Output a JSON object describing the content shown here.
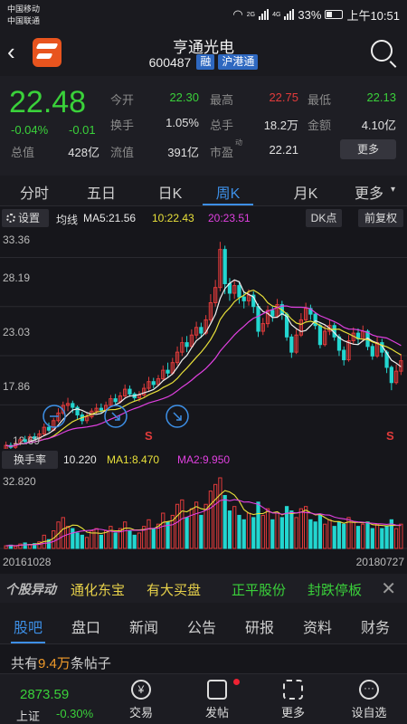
{
  "status": {
    "carrier1": "中国移动",
    "carrier2": "中国联通",
    "net1": "2G",
    "net2": "4G",
    "battery": "33%",
    "time": "上午10:51"
  },
  "header": {
    "name": "亨通光电",
    "code": "600487",
    "tag1": "融",
    "tag2": "沪港通"
  },
  "quote": {
    "price": "22.48",
    "change_pct": "-0.04%",
    "change_abs": "-0.01",
    "rows": [
      [
        {
          "l": "今开",
          "v": "22.30",
          "c": "#3ad13a"
        },
        {
          "l": "最高",
          "v": "22.75",
          "c": "#e23b3b"
        },
        {
          "l": "最低",
          "v": "22.13",
          "c": "#3ad13a"
        }
      ],
      [
        {
          "l": "换手",
          "v": "1.05%",
          "c": "#e0e0e0"
        },
        {
          "l": "总手",
          "v": "18.2万",
          "c": "#e0e0e0"
        },
        {
          "l": "金额",
          "v": "4.10亿",
          "c": "#e0e0e0"
        }
      ],
      [
        {
          "l": "流值",
          "v": "391亿",
          "c": "#e0e0e0"
        },
        {
          "l": "市盈",
          "v": "22.21",
          "c": "#e0e0e0"
        }
      ]
    ],
    "total_label": "总值",
    "total_value": "428亿",
    "pe_sup": "动",
    "more_label": "更多"
  },
  "period_tabs": [
    "分时",
    "五日",
    "日K",
    "周K",
    "月K",
    "更多"
  ],
  "chart_toolbar": {
    "settings": "设置",
    "ma_title": "均线",
    "ma5": "MA5:21.56",
    "ma10": "10:22.43",
    "ma20": "20:23.51",
    "dk": "DK点",
    "fq": "前复权"
  },
  "chart_data": {
    "type": "candlestick",
    "y_ticks": [
      "33.36",
      "28.19",
      "23.03",
      "17.86"
    ],
    "ylim": [
      13.8,
      35.5
    ],
    "min_label": "12.69",
    "candles": [
      [
        13.2,
        13.6,
        13.0,
        14.0
      ],
      [
        13.6,
        13.4,
        13.1,
        13.9
      ],
      [
        13.4,
        13.8,
        13.2,
        14.1
      ],
      [
        13.8,
        14.2,
        13.6,
        14.5
      ],
      [
        14.2,
        14.0,
        13.8,
        14.6
      ],
      [
        14.0,
        14.5,
        13.9,
        14.8
      ],
      [
        14.5,
        14.3,
        14.1,
        14.9
      ],
      [
        14.3,
        14.8,
        14.2,
        15.2
      ],
      [
        14.8,
        15.5,
        14.6,
        15.9
      ],
      [
        15.5,
        15.2,
        15.0,
        16.0
      ],
      [
        15.2,
        16.2,
        15.1,
        16.5
      ],
      [
        16.2,
        17.0,
        16.0,
        17.5
      ],
      [
        17.0,
        17.8,
        16.8,
        18.2
      ],
      [
        17.8,
        18.0,
        17.2,
        18.6
      ],
      [
        18.0,
        17.6,
        17.0,
        18.3
      ],
      [
        17.6,
        16.8,
        16.3,
        17.8
      ],
      [
        16.8,
        16.2,
        15.8,
        17.1
      ],
      [
        16.2,
        16.6,
        15.9,
        17.0
      ],
      [
        16.6,
        17.2,
        16.4,
        17.5
      ],
      [
        17.2,
        17.5,
        16.9,
        18.0
      ],
      [
        17.5,
        17.3,
        17.0,
        18.0
      ],
      [
        17.3,
        17.8,
        17.1,
        18.2
      ],
      [
        17.8,
        18.5,
        17.6,
        18.9
      ],
      [
        18.5,
        18.2,
        17.9,
        19.0
      ],
      [
        18.2,
        18.8,
        18.0,
        19.2
      ],
      [
        18.8,
        19.5,
        18.6,
        20.0
      ],
      [
        19.5,
        19.0,
        18.7,
        19.9
      ],
      [
        19.0,
        18.6,
        18.3,
        19.2
      ],
      [
        18.6,
        18.9,
        18.2,
        19.3
      ],
      [
        18.9,
        19.6,
        18.7,
        20.1
      ],
      [
        19.6,
        20.3,
        19.3,
        20.8
      ],
      [
        20.3,
        20.0,
        19.6,
        20.7
      ],
      [
        20.0,
        20.6,
        19.8,
        21.0
      ],
      [
        20.6,
        21.5,
        20.4,
        22.0
      ],
      [
        21.5,
        21.2,
        20.8,
        22.3
      ],
      [
        21.2,
        22.3,
        21.0,
        22.8
      ],
      [
        22.3,
        23.4,
        22.0,
        24.0
      ],
      [
        23.4,
        24.4,
        23.0,
        25.0
      ],
      [
        24.4,
        24.0,
        23.4,
        25.1
      ],
      [
        24.0,
        25.2,
        23.8,
        25.8
      ],
      [
        25.2,
        26.0,
        24.8,
        26.6
      ],
      [
        26.0,
        25.4,
        24.9,
        26.5
      ],
      [
        25.4,
        26.8,
        25.2,
        27.3
      ],
      [
        26.8,
        28.6,
        26.5,
        29.5
      ],
      [
        28.6,
        30.2,
        28.2,
        31.0
      ],
      [
        30.2,
        34.2,
        29.8,
        35.0
      ],
      [
        34.2,
        30.6,
        29.5,
        34.6
      ],
      [
        30.6,
        29.6,
        28.8,
        31.2
      ],
      [
        29.6,
        30.4,
        29.0,
        31.0
      ],
      [
        30.4,
        29.2,
        28.5,
        30.8
      ],
      [
        29.2,
        28.8,
        28.0,
        29.8
      ],
      [
        28.8,
        29.4,
        28.3,
        30.0
      ],
      [
        29.4,
        28.2,
        27.5,
        29.8
      ],
      [
        28.2,
        25.6,
        25.0,
        28.5
      ],
      [
        25.6,
        26.4,
        25.2,
        27.0
      ],
      [
        26.4,
        27.8,
        26.0,
        28.3
      ],
      [
        27.8,
        27.2,
        26.6,
        28.2
      ],
      [
        27.2,
        28.4,
        27.0,
        29.0
      ],
      [
        28.4,
        27.4,
        26.8,
        28.8
      ],
      [
        27.4,
        25.0,
        24.6,
        27.6
      ],
      [
        25.0,
        23.4,
        22.8,
        25.3
      ],
      [
        23.4,
        25.2,
        23.2,
        25.8
      ],
      [
        25.2,
        26.8,
        25.0,
        27.5
      ],
      [
        26.8,
        28.0,
        26.5,
        28.6
      ],
      [
        28.0,
        27.4,
        26.8,
        28.4
      ],
      [
        27.4,
        26.2,
        25.8,
        27.6
      ],
      [
        26.2,
        24.2,
        23.8,
        26.4
      ],
      [
        24.2,
        25.6,
        24.0,
        26.2
      ],
      [
        25.6,
        26.2,
        25.2,
        26.8
      ],
      [
        26.2,
        25.0,
        24.6,
        26.5
      ],
      [
        25.0,
        23.6,
        23.0,
        25.3
      ],
      [
        23.6,
        22.6,
        22.0,
        24.0
      ],
      [
        22.6,
        24.6,
        22.4,
        25.2
      ],
      [
        24.6,
        25.4,
        24.2,
        26.0
      ],
      [
        25.4,
        24.8,
        24.2,
        25.9
      ],
      [
        24.8,
        25.6,
        24.5,
        26.2
      ],
      [
        25.6,
        24.0,
        23.6,
        25.8
      ],
      [
        24.0,
        23.0,
        22.6,
        24.3
      ],
      [
        23.0,
        24.4,
        22.8,
        25.0
      ],
      [
        24.4,
        23.4,
        22.9,
        24.8
      ],
      [
        23.4,
        21.8,
        21.2,
        23.6
      ],
      [
        21.8,
        20.2,
        19.4,
        22.0
      ],
      [
        20.2,
        21.4,
        20.0,
        22.1
      ],
      [
        21.4,
        22.5,
        21.0,
        23.2
      ]
    ],
    "annotations": {
      "s_marks": [
        "S",
        "S"
      ],
      "circle_icons": [
        "minus-circle",
        "down-circle",
        "down-right-circle"
      ]
    }
  },
  "volume": {
    "label": "换手率",
    "current": "10.220",
    "ma1": "MA1:8.470",
    "ma2": "MA2:9.950",
    "top_label": "32.820",
    "values": [
      1.2,
      1.5,
      1.0,
      2.0,
      2.5,
      1.8,
      2.2,
      3.0,
      6.0,
      4.0,
      8.0,
      12.0,
      14.0,
      10.0,
      9.0,
      7.0,
      6.0,
      5.0,
      8.0,
      9.0,
      6.0,
      8.0,
      10.0,
      7.0,
      9.0,
      12.0,
      8.0,
      6.0,
      7.0,
      10.0,
      13.0,
      9.0,
      11.0,
      16.0,
      12.0,
      15.0,
      20.0,
      22.0,
      14.0,
      18.0,
      21.0,
      15.0,
      20.0,
      26.0,
      29.0,
      32.0,
      24.0,
      17.0,
      19.0,
      15.0,
      13.0,
      16.0,
      14.0,
      21.0,
      15.0,
      18.0,
      13.0,
      16.0,
      14.0,
      19.0,
      17.0,
      14.0,
      18.0,
      19.0,
      13.0,
      12.0,
      15.0,
      11.0,
      13.0,
      10.0,
      12.0,
      11.0,
      14.0,
      12.0,
      10.0,
      11.0,
      12.0,
      9.0,
      11.0,
      9.0,
      10.0,
      13.0,
      9.0,
      11.0
    ],
    "date_start": "20161028",
    "date_end": "20180727"
  },
  "ticker": {
    "logo": "个股异动",
    "items": [
      {
        "t": "通化东宝",
        "c": "#e8d24a"
      },
      {
        "t": "有大买盘",
        "c": "#e8d24a"
      },
      {
        "t": "正平股份",
        "c": "#3ad13a"
      },
      {
        "t": "封跌停板",
        "c": "#3ad13a"
      }
    ]
  },
  "bottom_tabs": [
    "股吧",
    "盘口",
    "新闻",
    "公告",
    "研报",
    "资料",
    "财务"
  ],
  "posts": {
    "prefix": "共有",
    "count": "9.4万",
    "suffix": "条帖子"
  },
  "bottom_bar": {
    "index_value": "2873.59",
    "index_name": "上证",
    "index_change": "-0.30%",
    "items": [
      "交易",
      "发帖",
      "更多",
      "设自选"
    ]
  }
}
